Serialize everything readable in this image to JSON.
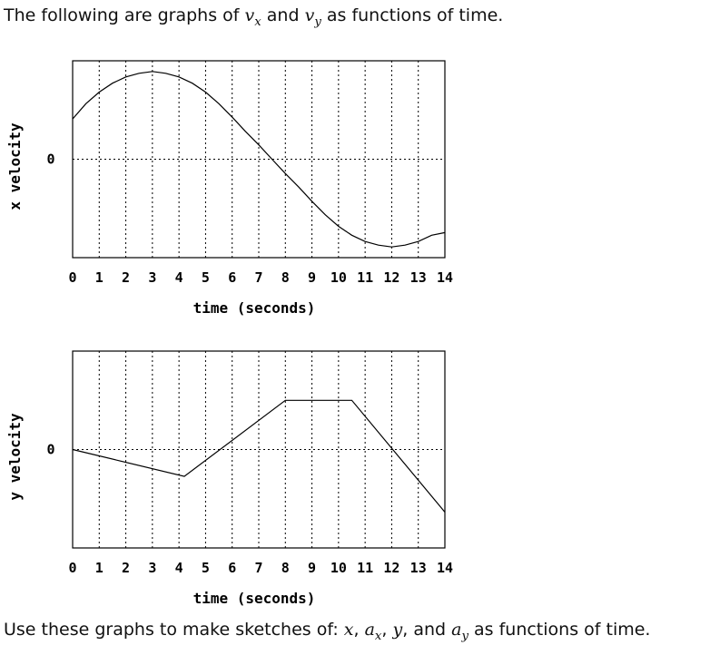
{
  "intro": {
    "prefix": "The following are graphs of ",
    "v1": "v",
    "s1": "x",
    "mid": " and ",
    "v2": "v",
    "s2": "y",
    "suffix": " as functions of time."
  },
  "outro": {
    "prefix": "Use these graphs to make sketches of: ",
    "t1": "x",
    "c1": ", ",
    "t2a": "a",
    "t2s": "x",
    "c2": ", ",
    "t3": "y",
    "c3": ", and ",
    "t4a": "a",
    "t4s": "y",
    "suffix": " as functions of time."
  },
  "chart_data": [
    {
      "type": "line",
      "ylabel": "x velocity",
      "xlabel": "time (seconds)",
      "xlim": [
        0,
        14
      ],
      "ylim": [
        -1.1,
        1.1
      ],
      "xticks": [
        "0",
        "1",
        "2",
        "3",
        "4",
        "5",
        "6",
        "7",
        "8",
        "9",
        "10",
        "11",
        "12",
        "13",
        "14"
      ],
      "yticks": [
        {
          "value": 0,
          "label": "0"
        }
      ],
      "grid": true,
      "x": [
        0,
        0.5,
        1,
        1.5,
        2,
        2.5,
        3,
        3.5,
        4,
        4.5,
        5,
        5.5,
        6,
        6.5,
        7,
        7.5,
        8,
        8.5,
        9,
        9.5,
        10,
        10.5,
        11,
        11.5,
        12,
        12.5,
        13,
        13.5,
        14
      ],
      "y": [
        0.45,
        0.62,
        0.75,
        0.85,
        0.92,
        0.96,
        0.98,
        0.96,
        0.92,
        0.85,
        0.75,
        0.62,
        0.47,
        0.31,
        0.16,
        0.0,
        -0.16,
        -0.31,
        -0.47,
        -0.62,
        -0.75,
        -0.85,
        -0.92,
        -0.96,
        -0.98,
        -0.96,
        -0.92,
        -0.85,
        -0.82
      ]
    },
    {
      "type": "line",
      "ylabel": "y velocity",
      "xlabel": "time (seconds)",
      "xlim": [
        0,
        14
      ],
      "ylim": [
        -1.1,
        1.1
      ],
      "xticks": [
        "0",
        "1",
        "2",
        "3",
        "4",
        "5",
        "6",
        "7",
        "8",
        "9",
        "10",
        "11",
        "12",
        "13",
        "14"
      ],
      "yticks": [
        {
          "value": 0,
          "label": "0"
        }
      ],
      "grid": true,
      "x": [
        0,
        4.2,
        8,
        10.5,
        14
      ],
      "y": [
        0,
        -0.3,
        0.55,
        0.55,
        -0.7
      ]
    }
  ]
}
